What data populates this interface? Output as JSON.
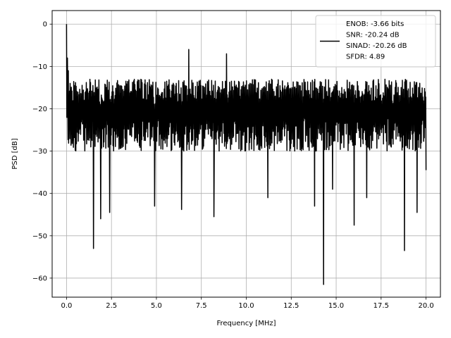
{
  "chart_data": {
    "type": "line",
    "title": "",
    "xlabel": "Frequency [MHz]",
    "ylabel": "PSD [dB]",
    "xlim": [
      -0.8,
      20.8
    ],
    "ylim": [
      -64.5,
      3.2
    ],
    "x_ticks": [
      0.0,
      2.5,
      5.0,
      7.5,
      10.0,
      12.5,
      15.0,
      17.5,
      20.0
    ],
    "x_tick_labels": [
      "0.0",
      "2.5",
      "5.0",
      "7.5",
      "10.0",
      "12.5",
      "15.0",
      "17.5",
      "20.0"
    ],
    "y_ticks": [
      0,
      -10,
      -20,
      -30,
      -40,
      -50,
      -60
    ],
    "y_tick_labels": [
      "0",
      "−10",
      "−20",
      "−30",
      "−40",
      "−50",
      "−60"
    ],
    "grid": true,
    "legend_position": "top-right",
    "series": [
      {
        "name": "ENOB: -3.66 bits\nSNR: -20.24 dB\nSINAD: -20.26 dB\nSFDR: 4.89",
        "color": "#000000",
        "noise_floor": [
          -31,
          -12
        ],
        "x_range": [
          0.0,
          20.0
        ],
        "peaks": [
          {
            "x": 0.0,
            "y": 0.0
          },
          {
            "x": 0.05,
            "y": -8.0
          },
          {
            "x": 0.1,
            "y": -11.0
          },
          {
            "x": 0.2,
            "y": -14.0
          },
          {
            "x": 1.5,
            "y": -53.0
          },
          {
            "x": 1.9,
            "y": -46.0
          },
          {
            "x": 2.4,
            "y": -44.5
          },
          {
            "x": 4.9,
            "y": -43.0
          },
          {
            "x": 6.4,
            "y": -43.8
          },
          {
            "x": 6.8,
            "y": -6.0
          },
          {
            "x": 8.2,
            "y": -45.5
          },
          {
            "x": 8.9,
            "y": -7.0
          },
          {
            "x": 11.2,
            "y": -41.0
          },
          {
            "x": 13.8,
            "y": -43.0
          },
          {
            "x": 14.3,
            "y": -61.5
          },
          {
            "x": 14.8,
            "y": -39.0
          },
          {
            "x": 16.0,
            "y": -47.5
          },
          {
            "x": 16.7,
            "y": -41.0
          },
          {
            "x": 18.8,
            "y": -53.5
          },
          {
            "x": 19.5,
            "y": -44.5
          },
          {
            "x": 20.0,
            "y": -34.5
          }
        ]
      }
    ]
  },
  "legend": {
    "line1": "ENOB: -3.66 bits",
    "line2": "SNR: -20.24 dB",
    "line3": "SINAD: -20.26 dB",
    "line4": "SFDR: 4.89"
  },
  "axes": {
    "xlabel": "Frequency [MHz]",
    "ylabel": "PSD [dB]"
  }
}
